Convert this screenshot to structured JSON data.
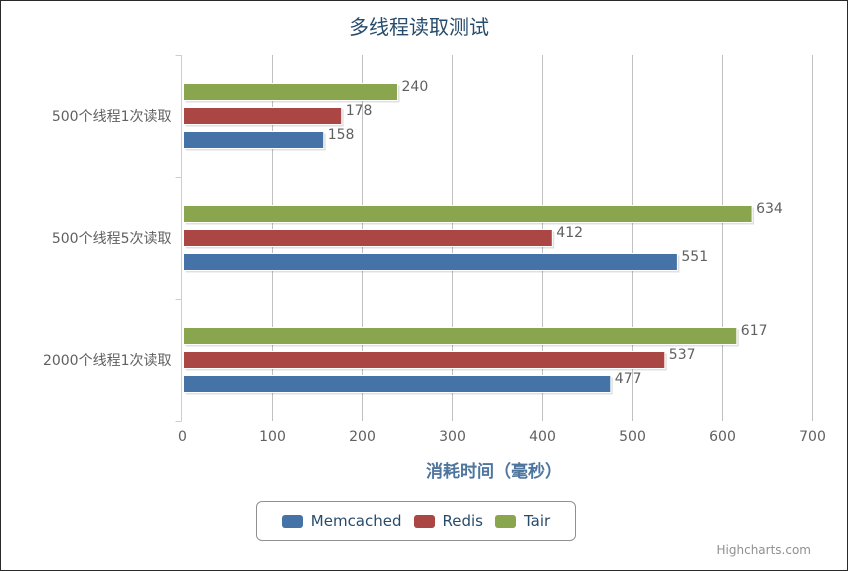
{
  "chart_data": {
    "type": "bar",
    "orientation": "horizontal",
    "title": "多线程读取测试",
    "xlabel": "消耗时间（毫秒）",
    "ylabel": "",
    "categories": [
      "500个线程1次读取",
      "500个线程5次读取",
      "2000个线程1次读取"
    ],
    "series": [
      {
        "name": "Memcached",
        "color": "#4572a7",
        "values": [
          158,
          551,
          477
        ]
      },
      {
        "name": "Redis",
        "color": "#aa4643",
        "values": [
          178,
          412,
          537
        ]
      },
      {
        "name": "Tair",
        "color": "#89a54e",
        "values": [
          240,
          634,
          617
        ]
      }
    ],
    "xlim": [
      0,
      700
    ],
    "xticks": [
      "0",
      "100",
      "200",
      "300",
      "400",
      "500",
      "600",
      "700"
    ],
    "grid": true,
    "legend_position": "bottom-center",
    "credits": "Highcharts.com"
  }
}
